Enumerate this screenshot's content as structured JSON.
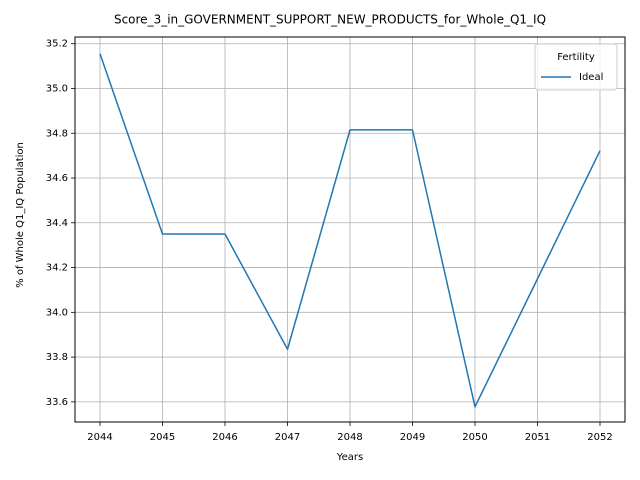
{
  "chart_data": {
    "type": "line",
    "title": "Score_3_in_GOVERNMENT_SUPPORT_NEW_PRODUCTS_for_Whole_Q1_IQ",
    "xlabel": "Years",
    "ylabel": "% of Whole Q1_IQ Population",
    "x": [
      2044,
      2045,
      2046,
      2047,
      2048,
      2049,
      2050,
      2051,
      2052
    ],
    "series": [
      {
        "name": "Ideal",
        "color": "#1f77b4",
        "values": [
          35.155,
          34.35,
          34.35,
          33.835,
          34.815,
          34.815,
          33.578,
          34.15,
          34.722
        ]
      }
    ],
    "xlim": [
      2043.6,
      2052.4
    ],
    "ylim": [
      33.51,
      35.23
    ],
    "xticks": [
      "2044",
      "2045",
      "2046",
      "2047",
      "2048",
      "2049",
      "2050",
      "2051",
      "2052"
    ],
    "yticks": [
      "33.6",
      "33.8",
      "34.0",
      "34.2",
      "34.4",
      "34.6",
      "34.8",
      "35.0",
      "35.2"
    ],
    "grid": true,
    "legend": {
      "title": "Fertility",
      "placement": "top-right"
    }
  }
}
